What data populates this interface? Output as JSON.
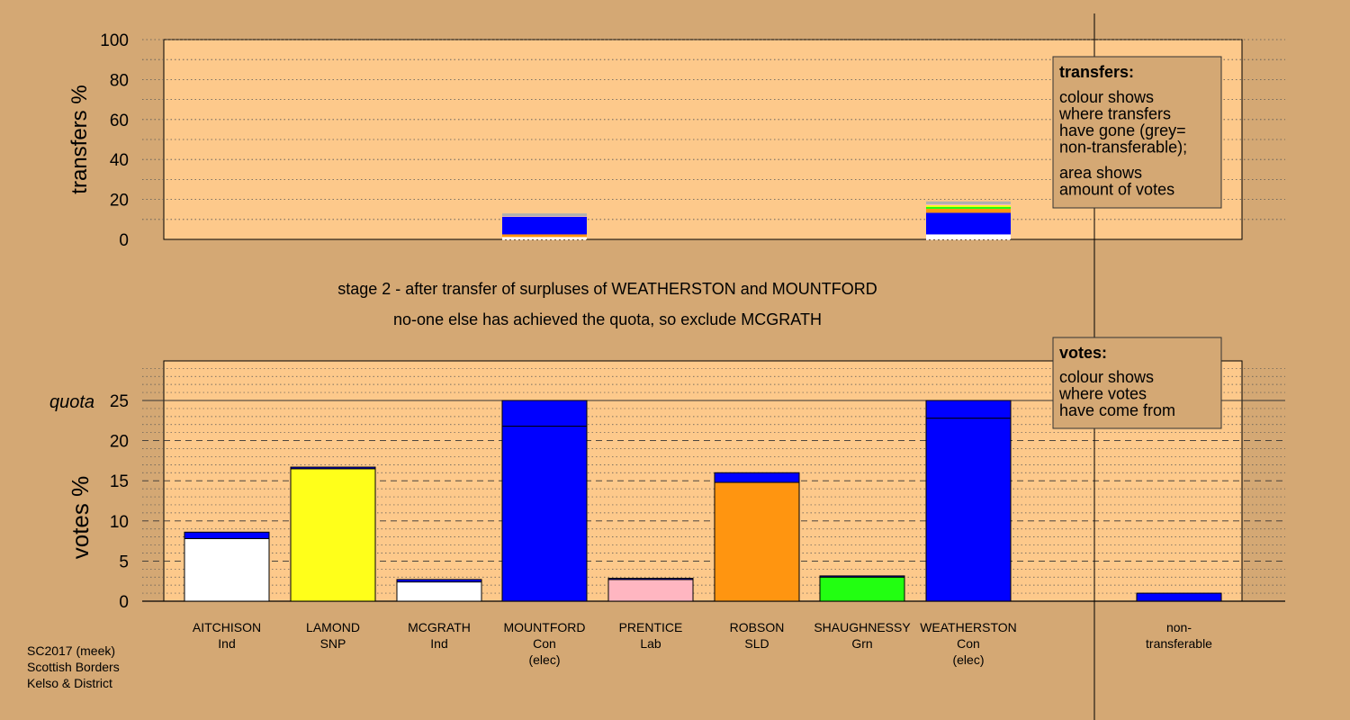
{
  "footer": {
    "line1": "SC2017 (meek)",
    "line2": "Scottish Borders",
    "line3": "Kelso & District"
  },
  "stage": {
    "line1": "stage 2 - after transfer of surpluses of WEATHERSTON and MOUNTFORD",
    "line2": "no-one else has achieved the quota, so exclude MCGRATH"
  },
  "legends": {
    "transfers": {
      "title": "transfers:",
      "body1": [
        "colour shows",
        "where transfers",
        "have gone (grey=",
        "non-transferable);"
      ],
      "body2": [
        "area shows",
        "amount of votes"
      ]
    },
    "votes": {
      "title": "votes:",
      "body1": [
        "colour shows",
        "where votes",
        "have come from"
      ]
    }
  },
  "colors": {
    "background": "#d4a874",
    "plot": "#fdc98b",
    "Ind": "#ffffff",
    "SNP": "#ffff1a",
    "Con": "#0000ff",
    "Lab": "#ffb6c1",
    "SLD": "#ff9510",
    "Grn": "#22ff11",
    "nontransferable": "#b0b0b0",
    "legend_box": "#d4a874"
  },
  "chart_data": [
    {
      "type": "bar",
      "panel": "transfers",
      "ylabel": "transfers %",
      "ylim": [
        0,
        100
      ],
      "yticks": [
        0,
        20,
        40,
        60,
        80,
        100
      ],
      "grid": true,
      "bars": [
        {
          "candidate": "MOUNTFORD",
          "segments": [
            {
              "to": "Ind",
              "value": 1.2
            },
            {
              "to": "SLD",
              "value": 1.3
            },
            {
              "to": "Con",
              "value": 8.8
            },
            {
              "to": "Lab",
              "value": 0.3
            },
            {
              "to": "non-transferable",
              "value": 1.4
            }
          ]
        },
        {
          "candidate": "WEATHERSTON",
          "segments": [
            {
              "to": "Ind",
              "value": 2.5
            },
            {
              "to": "Con",
              "value": 10.8
            },
            {
              "to": "SLD",
              "value": 2.0
            },
            {
              "to": "Grn",
              "value": 1.0
            },
            {
              "to": "SNP",
              "value": 0.8
            },
            {
              "to": "Lab",
              "value": 0.5
            },
            {
              "to": "non-transferable",
              "value": 1.4
            }
          ]
        }
      ]
    },
    {
      "type": "bar",
      "panel": "votes",
      "ylabel": "votes %",
      "quota_label": "quota",
      "quota": 25,
      "ylim": [
        0,
        30
      ],
      "yticks": [
        0,
        5,
        10,
        15,
        20,
        25
      ],
      "grid": true,
      "categories": [
        {
          "name": "AITCHISON",
          "party": "Ind",
          "note": ""
        },
        {
          "name": "LAMOND",
          "party": "SNP",
          "note": ""
        },
        {
          "name": "MCGRATH",
          "party": "Ind",
          "note": ""
        },
        {
          "name": "MOUNTFORD",
          "party": "Con",
          "note": "(elec)"
        },
        {
          "name": "PRENTICE",
          "party": "Lab",
          "note": ""
        },
        {
          "name": "ROBSON",
          "party": "SLD",
          "note": ""
        },
        {
          "name": "SHAUGHNESSY",
          "party": "Grn",
          "note": ""
        },
        {
          "name": "WEATHERSTON",
          "party": "Con",
          "note": "(elec)"
        }
      ],
      "nontransferable_label": [
        "non-",
        "transferable"
      ],
      "bars": [
        {
          "candidate": "AITCHISON",
          "first": 7.8,
          "transferred": 0.8
        },
        {
          "candidate": "LAMOND",
          "first": 16.5,
          "transferred": 0.2
        },
        {
          "candidate": "MCGRATH",
          "first": 2.4,
          "transferred": 0.3
        },
        {
          "candidate": "MOUNTFORD",
          "first": 21.8,
          "transferred": 3.2
        },
        {
          "candidate": "PRENTICE",
          "first": 2.7,
          "transferred": 0.15
        },
        {
          "candidate": "ROBSON",
          "first": 14.8,
          "transferred": 1.2
        },
        {
          "candidate": "SHAUGHNESSY",
          "first": 3.0,
          "transferred": 0.15
        },
        {
          "candidate": "WEATHERSTON",
          "first": 22.8,
          "transferred": 2.2
        }
      ],
      "nontransferable": 1.0
    }
  ]
}
